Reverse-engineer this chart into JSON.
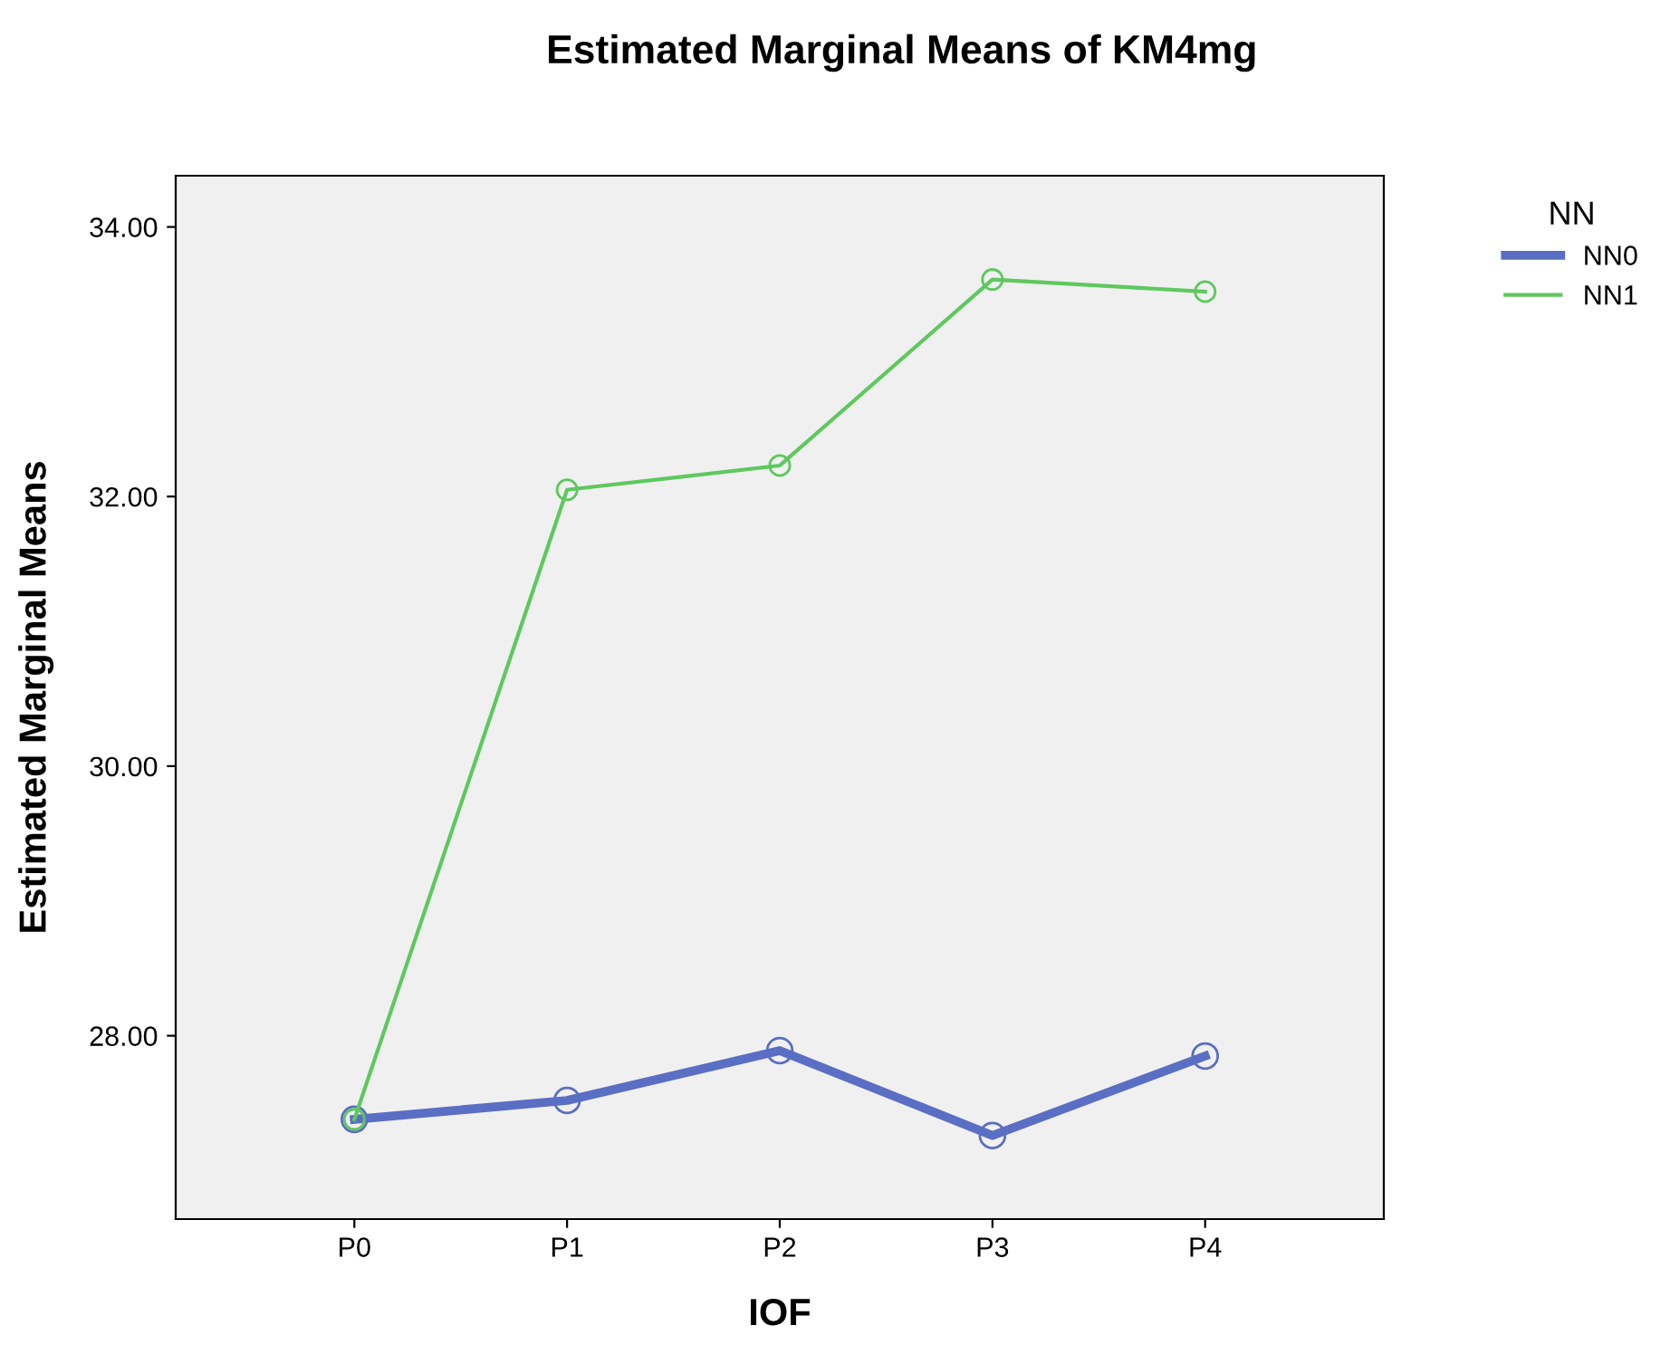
{
  "chart_data": {
    "type": "line",
    "title": "Estimated Marginal Means of KM4mg",
    "xlabel": "IOF",
    "ylabel": "Estimated Marginal Means",
    "legend_title": "NN",
    "categories": [
      "P0",
      "P1",
      "P2",
      "P3",
      "P4"
    ],
    "series": [
      {
        "name": "NN0",
        "color": "#5a6ec3",
        "values": [
          27.38,
          27.52,
          27.89,
          27.26,
          27.85
        ]
      },
      {
        "name": "NN1",
        "color": "#5ec85e",
        "values": [
          27.38,
          32.05,
          32.23,
          33.61,
          33.52
        ]
      }
    ],
    "ylim": [
      26.64,
      34.38
    ],
    "yticks": [
      {
        "value": 28,
        "label": "28.00"
      },
      {
        "value": 30,
        "label": "30.00"
      },
      {
        "value": 32,
        "label": "32.00"
      },
      {
        "value": 34,
        "label": "34.00"
      }
    ],
    "marker": "circle",
    "line_style": "solid",
    "grid": false,
    "legend": "top right"
  }
}
